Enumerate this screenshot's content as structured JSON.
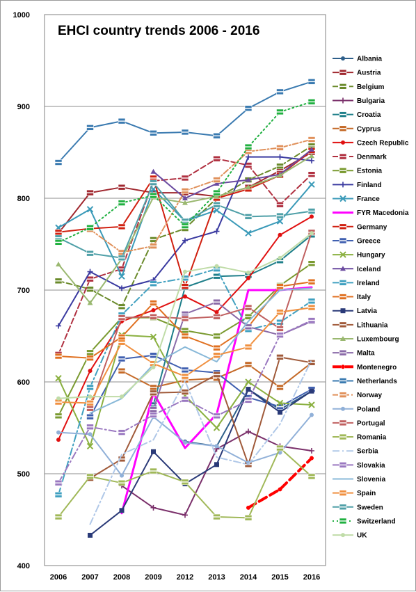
{
  "chart_data": {
    "type": "line",
    "title": "EHCI country trends 2006 - 2016",
    "xlabel": "",
    "ylabel": "",
    "categories": [
      "2006",
      "2007",
      "2008",
      "2009",
      "2012",
      "2013",
      "2014",
      "2015",
      "2016"
    ],
    "ylim": [
      400,
      1000
    ],
    "yticks": [
      "400",
      "500",
      "600",
      "700",
      "800",
      "900",
      "1000"
    ],
    "grid": "horizontal",
    "legend": "right",
    "series": [
      {
        "name": "Albania",
        "color": "#2e5f8a",
        "dash": "",
        "marker": "dot",
        "values": [
          null,
          null,
          null,
          null,
          535,
          530,
          592,
          570,
          590
        ]
      },
      {
        "name": "Austria",
        "color": "#a0282f",
        "dash": "",
        "marker": "flag",
        "values": [
          762,
          806,
          812,
          806,
          806,
          802,
          812,
          830,
          850
        ]
      },
      {
        "name": "Belgium",
        "color": "#6a8a2a",
        "dash": "8,4",
        "marker": "flag",
        "values": [
          710,
          701,
          682,
          755,
          767,
          800,
          820,
          835,
          857
        ]
      },
      {
        "name": "Bulgaria",
        "color": "#7a2f6a",
        "dash": "",
        "marker": "plus",
        "values": [
          null,
          null,
          487,
          463,
          455,
          527,
          546,
          530,
          525
        ]
      },
      {
        "name": "Croatia",
        "color": "#1f7f8a",
        "dash": "",
        "marker": "flag",
        "values": [
          null,
          null,
          null,
          575,
          703,
          715,
          716,
          732,
          760
        ]
      },
      {
        "name": "Cyprus",
        "color": "#c56a28",
        "dash": "",
        "marker": "flag",
        "values": [
          null,
          null,
          612,
          594,
          602,
          604,
          619,
          594,
          621
        ]
      },
      {
        "name": "Czech Republic",
        "color": "#e01010",
        "dash": "",
        "marker": "dot",
        "values": [
          537,
          612,
          666,
          678,
          693,
          676,
          713,
          760,
          780
        ]
      },
      {
        "name": "Denmark",
        "color": "#b03040",
        "dash": "8,4",
        "marker": "flag",
        "values": [
          630,
          712,
          723,
          819,
          822,
          843,
          836,
          793,
          826
        ]
      },
      {
        "name": "Estonia",
        "color": "#7a9a30",
        "dash": "",
        "marker": "flag",
        "values": [
          563,
          632,
          670,
          670,
          656,
          650,
          671,
          705,
          729
        ]
      },
      {
        "name": "Finland",
        "color": "#3a3aa0",
        "dash": "",
        "marker": "plus",
        "values": [
          661,
          720,
          702,
          711,
          754,
          764,
          845,
          845,
          841
        ]
      },
      {
        "name": "France",
        "color": "#3a9ab8",
        "dash": "",
        "marker": "x",
        "values": [
          768,
          788,
          715,
          810,
          775,
          787,
          762,
          775,
          815
        ]
      },
      {
        "name": "FYR Macedonia",
        "color": "#ff00ff",
        "dash": "",
        "marker": "none",
        "values": [
          null,
          null,
          457,
          588,
          528,
          565,
          700,
          700,
          703
        ]
      },
      {
        "name": "Germany",
        "color": "#d02010",
        "dash": "",
        "marker": "flag",
        "values": [
          763,
          767,
          769,
          822,
          704,
          800,
          810,
          825,
          852
        ]
      },
      {
        "name": "Greece",
        "color": "#4060b0",
        "dash": "",
        "marker": "flag",
        "values": [
          null,
          562,
          625,
          629,
          613,
          610,
          583,
          573,
          592
        ]
      },
      {
        "name": "Hungary",
        "color": "#8ab040",
        "dash": "",
        "marker": "x",
        "values": [
          604,
          530,
          651,
          649,
          585,
          550,
          600,
          577,
          575
        ]
      },
      {
        "name": "Iceland",
        "color": "#6a4aa0",
        "dash": "",
        "marker": "triangle",
        "values": [
          null,
          null,
          null,
          829,
          800,
          816,
          820,
          826,
          853
        ]
      },
      {
        "name": "Ireland",
        "color": "#40a0c0",
        "dash": "10,4,2,4",
        "marker": "flag",
        "values": [
          477,
          594,
          673,
          707,
          713,
          723,
          657,
          665,
          688
        ]
      },
      {
        "name": "Italy",
        "color": "#e07020",
        "dash": "",
        "marker": "flag",
        "values": [
          628,
          626,
          649,
          686,
          650,
          637,
          660,
          704,
          709
        ]
      },
      {
        "name": "Latvia",
        "color": "#2a3a78",
        "dash": "",
        "marker": "square",
        "values": [
          null,
          433,
          460,
          524,
          489,
          510,
          592,
          567,
          590
        ]
      },
      {
        "name": "Lithuania",
        "color": "#a05a3a",
        "dash": "",
        "marker": "flag",
        "values": [
          null,
          495,
          516,
          588,
          589,
          608,
          510,
          627,
          621
        ]
      },
      {
        "name": "Luxembourg",
        "color": "#9ab870",
        "dash": "",
        "marker": "triangle",
        "values": [
          728,
          686,
          734,
          801,
          795,
          802,
          812,
          825,
          846
        ]
      },
      {
        "name": "Malta",
        "color": "#8a6aa8",
        "dash": "",
        "marker": "flag",
        "values": [
          null,
          null,
          null,
          570,
          674,
          687,
          660,
          651,
          666
        ]
      },
      {
        "name": "Montenegro",
        "color": "#ff0000",
        "dash": "12,6",
        "marker": "dot",
        "values": [
          null,
          null,
          null,
          null,
          null,
          null,
          463,
          483,
          517
        ]
      },
      {
        "name": "Netherlands",
        "color": "#3a7ab0",
        "dash": "",
        "marker": "flag",
        "values": [
          839,
          877,
          884,
          871,
          872,
          868,
          898,
          916,
          927
        ]
      },
      {
        "name": "Norway",
        "color": "#e0905a",
        "dash": "8,3,2,3",
        "marker": "flag",
        "values": [
          null,
          766,
          741,
          748,
          808,
          820,
          851,
          855,
          864
        ]
      },
      {
        "name": "Poland",
        "color": "#90b0d8",
        "dash": "",
        "marker": "dot",
        "values": [
          545,
          543,
          498,
          562,
          534,
          530,
          512,
          523,
          564
        ]
      },
      {
        "name": "Portugal",
        "color": "#c06060",
        "dash": "",
        "marker": "flag",
        "values": [
          null,
          571,
          670,
          671,
          669,
          671,
          681,
          658,
          763
        ]
      },
      {
        "name": "Romania",
        "color": "#a0b858",
        "dash": "",
        "marker": "flag",
        "values": [
          453,
          497,
          490,
          503,
          491,
          453,
          452,
          528,
          497
        ]
      },
      {
        "name": "Serbia",
        "color": "#b0c8e8",
        "dash": "10,4,2,4",
        "marker": "none",
        "values": [
          null,
          445,
          521,
          537,
          601,
          518,
          510,
          554,
          624
        ]
      },
      {
        "name": "Slovakia",
        "color": "#9a78c0",
        "dash": "10,4,2,4",
        "marker": "flag",
        "values": [
          490,
          551,
          545,
          564,
          581,
          563,
          580,
          651,
          667
        ]
      },
      {
        "name": "Slovenia",
        "color": "#88b8d8",
        "dash": "",
        "marker": "none",
        "values": [
          null,
          566,
          582,
          619,
          638,
          622,
          666,
          700,
          702
        ]
      },
      {
        "name": "Spain",
        "color": "#f09040",
        "dash": "",
        "marker": "flag",
        "values": [
          578,
          577,
          643,
          620,
          606,
          629,
          638,
          676,
          681
        ]
      },
      {
        "name": "Sweden",
        "color": "#50a0a8",
        "dash": "",
        "marker": "flag",
        "values": [
          757,
          740,
          735,
          817,
          775,
          793,
          780,
          781,
          786
        ]
      },
      {
        "name": "Switzerland",
        "color": "#20b040",
        "dash": "2,4",
        "marker": "flag",
        "values": [
          752,
          768,
          795,
          803,
          770,
          806,
          856,
          894,
          905
        ]
      },
      {
        "name": "UK",
        "color": "#c0dca8",
        "dash": "",
        "marker": "dot",
        "values": [
          582,
          584,
          584,
          616,
          720,
          726,
          719,
          735,
          762
        ]
      }
    ]
  }
}
